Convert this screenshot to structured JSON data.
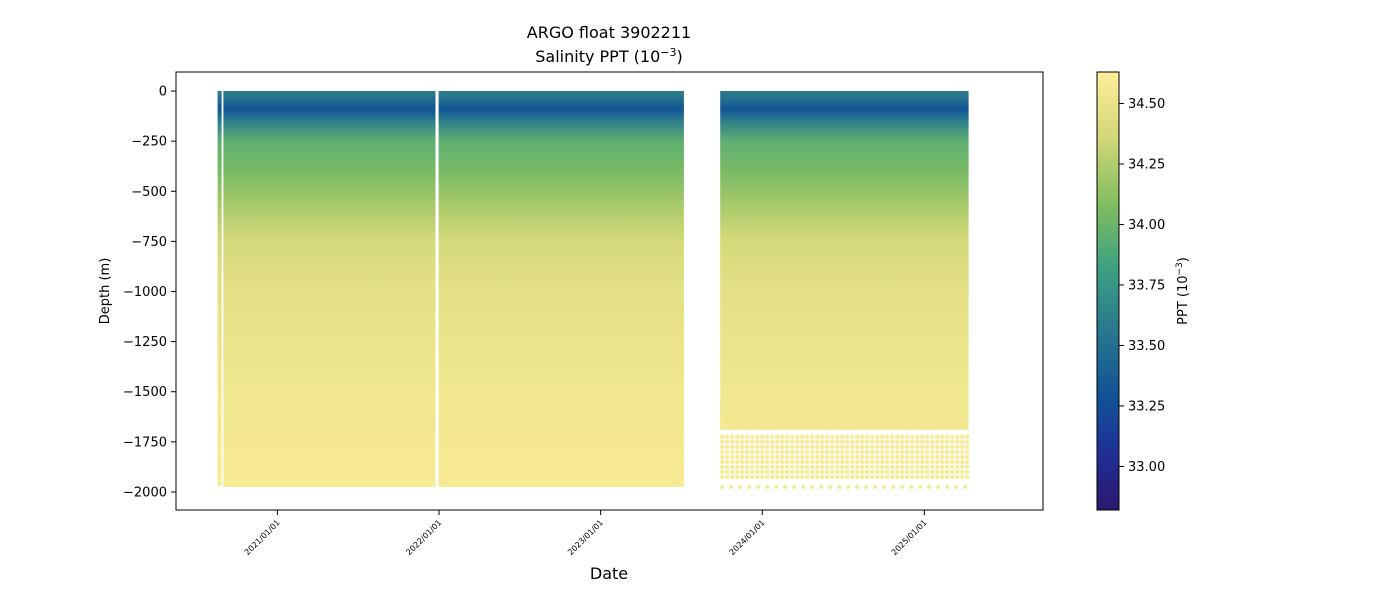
{
  "chart_data": {
    "type": "scatter",
    "title": "ARGO float 3902211",
    "subtitle_prefix": "Salinity PPT (10",
    "subtitle_exp": "−3",
    "subtitle_suffix": ")",
    "xlabel": "Date",
    "ylabel": "Depth (m)",
    "colorbar_label_prefix": "PPT (10",
    "colorbar_label_exp": "−3",
    "colorbar_label_suffix": ")",
    "colormap": "haline",
    "xlim": [
      "2020-05-17",
      "2025-09-26"
    ],
    "ylim": [
      -2090,
      95
    ],
    "clim": [
      32.82,
      34.63
    ],
    "y_ticks": [
      0,
      -250,
      -500,
      -750,
      -1000,
      -1250,
      -1500,
      -1750,
      -2000
    ],
    "y_tick_labels": [
      "0",
      "−250",
      "−500",
      "−750",
      "−1000",
      "−1250",
      "−1500",
      "−1750",
      "−2000"
    ],
    "x_ticks": [
      "2021-01-01",
      "2022-01-01",
      "2023-01-01",
      "2024-01-01",
      "2025-01-01"
    ],
    "x_tick_labels": [
      "2021/01/01",
      "2022/01/01",
      "2023/01/01",
      "2024/01/01",
      "2025/01/01"
    ],
    "colorbar_ticks": [
      33.0,
      33.25,
      33.5,
      33.75,
      34.0,
      34.25,
      34.5
    ],
    "colorbar_tick_labels": [
      "33.00",
      "33.25",
      "33.50",
      "33.75",
      "34.00",
      "34.25",
      "34.50"
    ],
    "profile_segments": [
      {
        "start": "2020-08-19",
        "end": "2020-08-20",
        "max_depth": -1970
      },
      {
        "start": "2020-09-01",
        "end": "2021-12-24",
        "max_depth": -1975
      },
      {
        "start": "2021-12-31",
        "end": "2023-07-08",
        "max_depth": -1975
      },
      {
        "start": "2023-09-28",
        "end": "2025-04-11",
        "max_depth": -1690
      }
    ],
    "deep_point_rows": {
      "start": "2023-09-28",
      "end": "2025-04-11",
      "depths": [
        -1725,
        -1750,
        -1775,
        -1800,
        -1825,
        -1850,
        -1875,
        -1900,
        -1925,
        -1975
      ]
    },
    "salinity_profile": [
      {
        "depth": 0,
        "salinity": 33.6
      },
      {
        "depth": -40,
        "salinity": 33.5
      },
      {
        "depth": -90,
        "salinity": 33.3
      },
      {
        "depth": -150,
        "salinity": 33.6
      },
      {
        "depth": -250,
        "salinity": 33.95
      },
      {
        "depth": -400,
        "salinity": 34.05
      },
      {
        "depth": -550,
        "salinity": 34.2
      },
      {
        "depth": -750,
        "salinity": 34.38
      },
      {
        "depth": -1000,
        "salinity": 34.47
      },
      {
        "depth": -1500,
        "salinity": 34.55
      },
      {
        "depth": -2000,
        "salinity": 34.6
      }
    ]
  }
}
